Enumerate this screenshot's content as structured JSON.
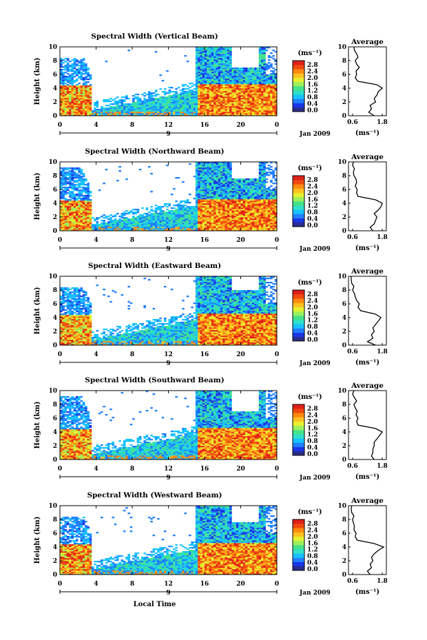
{
  "date_label": "Jan 2009",
  "day_label": "9",
  "xlabel": "Local Time",
  "ylabel": "Height (km)",
  "cbar_unit": "(ms⁻¹)",
  "avg_title": "Average",
  "avg_unit": "(ms⁻¹)",
  "colors": [
    "#2b2b8c",
    "#1a36e6",
    "#1f7fff",
    "#17c2ff",
    "#2de0c8",
    "#45e28a",
    "#9cf05a",
    "#e6f030",
    "#ffc020",
    "#ff8a10",
    "#f04a10",
    "#e0201a"
  ],
  "chart_data": [
    {
      "type": "heatmap",
      "title": "Spectral Width (Vertical Beam)",
      "x_ticks": [
        "0",
        "4",
        "8",
        "12",
        "16",
        "20",
        "0"
      ],
      "y_ticks": [
        "0",
        "2",
        "4",
        "6",
        "8",
        "10"
      ],
      "xlim": [
        0,
        24
      ],
      "ylim": [
        0,
        10
      ],
      "colorbar_ticks": [
        "2.8",
        "2.4",
        "2.0",
        "1.6",
        "1.2",
        "0.8",
        "0.4",
        "0.0"
      ],
      "avg_x_ticks": [
        "0.6",
        "1.8"
      ],
      "avg_y_ticks": [
        "0",
        "2",
        "4",
        "6",
        "8",
        "10"
      ],
      "avg_profile": {
        "height": [
          0,
          0.5,
          1,
          1.5,
          2,
          2.5,
          3,
          3.5,
          4,
          4.5,
          5,
          5.5,
          6,
          6.5,
          7,
          7.5,
          8,
          8.5,
          9,
          9.5,
          10
        ],
        "width": [
          1.45,
          1.25,
          1.35,
          1.3,
          1.5,
          1.45,
          1.55,
          1.6,
          1.75,
          1.55,
          0.85,
          0.75,
          0.8,
          0.78,
          0.9,
          0.8,
          0.75,
          0.85,
          0.8,
          0.72,
          0.7
        ]
      }
    },
    {
      "type": "heatmap",
      "title": "Spectral Width (Northward Beam)",
      "x_ticks": [
        "0",
        "4",
        "8",
        "12",
        "16",
        "20",
        "0"
      ],
      "y_ticks": [
        "0",
        "2",
        "4",
        "6",
        "8",
        "10"
      ],
      "xlim": [
        0,
        24
      ],
      "ylim": [
        0,
        10
      ],
      "colorbar_ticks": [
        "2.8",
        "2.4",
        "2.0",
        "1.6",
        "1.2",
        "0.8",
        "0.4",
        "0.0"
      ],
      "avg_x_ticks": [
        "0.6",
        "1.8"
      ],
      "avg_y_ticks": [
        "0",
        "2",
        "4",
        "6",
        "8",
        "10"
      ],
      "avg_profile": {
        "height": [
          0,
          0.5,
          1,
          1.5,
          2,
          2.5,
          3,
          3.5,
          4,
          4.5,
          5,
          5.5,
          6,
          6.5,
          7,
          7.5,
          8,
          8.5,
          9,
          9.5,
          10
        ],
        "width": [
          1.4,
          1.3,
          1.45,
          1.5,
          1.55,
          1.45,
          1.6,
          1.7,
          1.75,
          1.5,
          0.85,
          0.8,
          0.82,
          0.75,
          0.8,
          0.78,
          0.7,
          0.68,
          0.72,
          0.65,
          0.68
        ]
      }
    },
    {
      "type": "heatmap",
      "title": "Spectral Width (Eastward Beam)",
      "x_ticks": [
        "0",
        "4",
        "8",
        "12",
        "16",
        "20",
        "0"
      ],
      "y_ticks": [
        "0",
        "2",
        "4",
        "6",
        "8",
        "10"
      ],
      "xlim": [
        0,
        24
      ],
      "ylim": [
        0,
        10
      ],
      "colorbar_ticks": [
        "2.8",
        "2.4",
        "2.0",
        "1.6",
        "1.2",
        "0.8",
        "0.4",
        "0.0"
      ],
      "avg_x_ticks": [
        "0.6",
        "1.8"
      ],
      "avg_y_ticks": [
        "0",
        "2",
        "4",
        "6",
        "8",
        "10"
      ],
      "avg_profile": {
        "height": [
          0,
          0.5,
          1,
          1.5,
          2,
          2.5,
          3,
          3.5,
          4,
          4.5,
          5,
          5.5,
          6,
          6.5,
          7,
          7.5,
          8,
          8.5,
          9,
          9.5,
          10
        ],
        "width": [
          1.5,
          1.2,
          1.4,
          1.35,
          1.45,
          1.4,
          1.5,
          1.6,
          1.7,
          1.5,
          0.95,
          0.85,
          0.9,
          0.8,
          0.75,
          0.72,
          0.65,
          0.7,
          0.62,
          0.6,
          0.6
        ]
      }
    },
    {
      "type": "heatmap",
      "title": "Spectral Width (Southward Beam)",
      "x_ticks": [
        "0",
        "4",
        "8",
        "12",
        "16",
        "20",
        "0"
      ],
      "y_ticks": [
        "0",
        "2",
        "4",
        "6",
        "8",
        "10"
      ],
      "xlim": [
        0,
        24
      ],
      "ylim": [
        0,
        10
      ],
      "colorbar_ticks": [
        "2.8",
        "2.4",
        "2.0",
        "1.6",
        "1.2",
        "0.8",
        "0.4",
        "0.0"
      ],
      "avg_x_ticks": [
        "0.6",
        "1.8"
      ],
      "avg_y_ticks": [
        "0",
        "2",
        "4",
        "6",
        "8",
        "10"
      ],
      "avg_profile": {
        "height": [
          0,
          0.5,
          1,
          1.5,
          2,
          2.5,
          3,
          3.5,
          4,
          4.5,
          5,
          5.5,
          6,
          6.5,
          7,
          7.5,
          8,
          8.5,
          9,
          9.5,
          10
        ],
        "width": [
          1.45,
          1.35,
          1.4,
          1.4,
          1.45,
          1.45,
          1.55,
          1.65,
          1.75,
          1.5,
          0.85,
          0.8,
          0.85,
          0.78,
          0.82,
          0.75,
          0.7,
          0.8,
          0.72,
          0.65,
          0.7
        ]
      }
    },
    {
      "type": "heatmap",
      "title": "Spectral Width (Westward Beam)",
      "x_ticks": [
        "0",
        "4",
        "8",
        "12",
        "16",
        "20",
        "0"
      ],
      "y_ticks": [
        "0",
        "2",
        "4",
        "6",
        "8",
        "10"
      ],
      "xlim": [
        0,
        24
      ],
      "ylim": [
        0,
        10
      ],
      "colorbar_ticks": [
        "2.8",
        "2.4",
        "2.0",
        "1.6",
        "1.2",
        "0.8",
        "0.4",
        "0.0"
      ],
      "avg_x_ticks": [
        "0.6",
        "1.8"
      ],
      "avg_y_ticks": [
        "0",
        "2",
        "4",
        "6",
        "8",
        "10"
      ],
      "avg_profile": {
        "height": [
          0,
          0.5,
          1,
          1.5,
          2,
          2.5,
          3,
          3.5,
          4,
          4.5,
          5,
          5.5,
          6,
          6.5,
          7,
          7.5,
          8,
          8.5,
          9,
          9.5,
          10
        ],
        "width": [
          1.3,
          1.2,
          1.35,
          1.3,
          1.4,
          1.35,
          1.45,
          1.6,
          1.8,
          1.45,
          0.82,
          0.75,
          0.78,
          0.7,
          0.72,
          0.68,
          0.65,
          0.7,
          0.62,
          0.6,
          0.62
        ]
      }
    }
  ]
}
